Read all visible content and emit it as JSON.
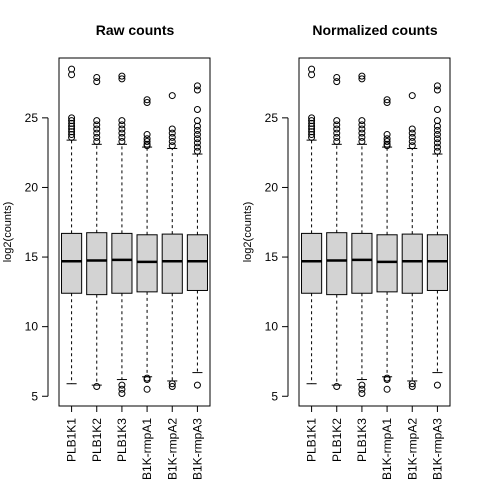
{
  "chart_data": [
    {
      "type": "boxplot",
      "title": "Raw counts",
      "ylabel": "log2(counts)",
      "ylim": [
        4.3,
        29.3
      ],
      "yticks": [
        5,
        10,
        15,
        20,
        25
      ],
      "categories": [
        "PLB1K1",
        "PLB1K2",
        "PLB1K3",
        "PLB1K-rmpA1",
        "PLB1K-rmpA2",
        "PLB1K-rmpA3"
      ],
      "boxes": [
        {
          "min": 5.9,
          "q1": 12.4,
          "median": 14.7,
          "q3": 16.7,
          "max": 23.4,
          "outliers": [
            23.6,
            23.8,
            24.0,
            24.2,
            24.4,
            24.6,
            24.8,
            25.0,
            28.1,
            28.5
          ]
        },
        {
          "min": 5.8,
          "q1": 12.3,
          "median": 14.75,
          "q3": 16.75,
          "max": 23.1,
          "outliers": [
            5.7,
            23.3,
            23.6,
            23.9,
            24.2,
            24.5,
            24.8,
            27.6,
            27.9
          ]
        },
        {
          "min": 6.2,
          "q1": 12.4,
          "median": 14.8,
          "q3": 16.7,
          "max": 23.1,
          "outliers": [
            5.2,
            5.5,
            5.8,
            23.3,
            23.6,
            23.9,
            24.2,
            24.5,
            24.8,
            27.8,
            28.0
          ]
        },
        {
          "min": 6.4,
          "q1": 12.5,
          "median": 14.65,
          "q3": 16.6,
          "max": 22.9,
          "outliers": [
            5.5,
            6.2,
            6.3,
            23.0,
            23.1,
            23.3,
            23.5,
            23.8,
            26.1,
            26.3
          ]
        },
        {
          "min": 6.1,
          "q1": 12.4,
          "median": 14.7,
          "q3": 16.65,
          "max": 22.8,
          "outliers": [
            5.7,
            5.9,
            23.0,
            23.3,
            23.6,
            23.9,
            24.2,
            26.6
          ]
        },
        {
          "min": 6.7,
          "q1": 12.6,
          "median": 14.7,
          "q3": 16.6,
          "max": 22.4,
          "outliers": [
            5.8,
            22.6,
            22.9,
            23.2,
            23.5,
            23.8,
            24.1,
            24.4,
            24.8,
            25.6,
            27.0,
            27.3
          ]
        }
      ]
    },
    {
      "type": "boxplot",
      "title": "Normalized counts",
      "ylabel": "log2(counts)",
      "ylim": [
        4.3,
        29.3
      ],
      "yticks": [
        5,
        10,
        15,
        20,
        25
      ],
      "categories": [
        "PLB1K1",
        "PLB1K2",
        "PLB1K3",
        "PLB1K-rmpA1",
        "PLB1K-rmpA2",
        "PLB1K-rmpA3"
      ],
      "boxes": [
        {
          "min": 5.9,
          "q1": 12.4,
          "median": 14.7,
          "q3": 16.7,
          "max": 23.4,
          "outliers": [
            23.6,
            23.8,
            24.0,
            24.2,
            24.4,
            24.6,
            24.8,
            25.0,
            28.1,
            28.5
          ]
        },
        {
          "min": 5.8,
          "q1": 12.3,
          "median": 14.75,
          "q3": 16.75,
          "max": 23.1,
          "outliers": [
            5.7,
            23.3,
            23.6,
            23.9,
            24.2,
            24.5,
            24.8,
            27.6,
            27.9
          ]
        },
        {
          "min": 6.2,
          "q1": 12.4,
          "median": 14.8,
          "q3": 16.7,
          "max": 23.1,
          "outliers": [
            5.2,
            5.5,
            5.8,
            23.3,
            23.6,
            23.9,
            24.2,
            24.5,
            24.8,
            27.8,
            28.0
          ]
        },
        {
          "min": 6.4,
          "q1": 12.5,
          "median": 14.65,
          "q3": 16.6,
          "max": 22.9,
          "outliers": [
            5.5,
            6.2,
            6.3,
            23.0,
            23.1,
            23.3,
            23.5,
            23.8,
            26.1,
            26.3
          ]
        },
        {
          "min": 6.1,
          "q1": 12.4,
          "median": 14.7,
          "q3": 16.65,
          "max": 22.8,
          "outliers": [
            5.7,
            5.9,
            23.0,
            23.3,
            23.6,
            23.9,
            24.2,
            26.6
          ]
        },
        {
          "min": 6.7,
          "q1": 12.6,
          "median": 14.7,
          "q3": 16.6,
          "max": 22.4,
          "outliers": [
            5.8,
            22.6,
            22.9,
            23.2,
            23.5,
            23.8,
            24.1,
            24.4,
            24.8,
            25.6,
            27.0,
            27.3
          ]
        }
      ]
    }
  ]
}
